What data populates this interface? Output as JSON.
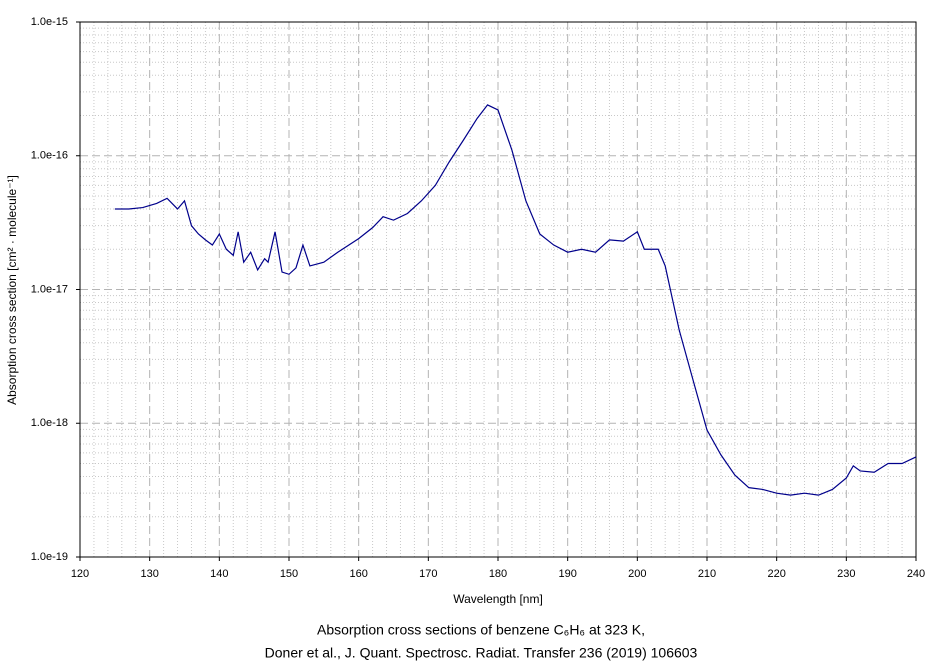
{
  "chart_data": {
    "type": "line",
    "log_y": true,
    "grid": true,
    "minor_grid": true,
    "x_label": "Wavelength [nm]",
    "y_label": "Absorption cross section [cm² · molecule⁻¹]",
    "caption": [
      "Absorption cross sections of benzene C₆H₆ at 323 K,",
      "Doner et al., J. Quant. Spectrosc. Radiat. Transfer 236 (2019) 106603"
    ],
    "xlim": [
      120,
      240
    ],
    "xticks": [
      120,
      130,
      140,
      150,
      160,
      170,
      180,
      190,
      200,
      210,
      220,
      230,
      240
    ],
    "ylim": [
      1e-19,
      1e-15
    ],
    "yticks": [
      {
        "value": 1e-19,
        "label": "1.0e-19"
      },
      {
        "value": 1e-18,
        "label": "1.0e-18"
      },
      {
        "value": 1e-17,
        "label": "1.0e-17"
      },
      {
        "value": 1e-16,
        "label": "1.0e-16"
      },
      {
        "value": 1e-15,
        "label": "1.0e-15"
      }
    ],
    "color": "#00008b",
    "x": [
      125,
      127,
      129,
      131,
      132.5,
      134,
      135,
      136,
      137,
      138,
      139,
      140,
      141,
      142,
      142.7,
      143.5,
      144.5,
      145.5,
      146.5,
      147,
      148,
      149,
      150,
      151,
      152,
      153,
      155,
      157,
      160,
      162,
      163.5,
      165,
      167,
      169,
      171,
      173,
      175,
      177,
      178.5,
      180,
      182,
      184,
      186,
      188,
      190,
      192,
      194,
      196,
      198,
      200,
      201,
      203,
      204,
      206,
      208,
      210,
      212,
      214,
      216,
      218,
      220,
      222,
      224,
      226,
      228,
      230,
      231,
      232,
      234,
      236,
      238,
      240
    ],
    "values": [
      4e-17,
      4e-17,
      4.1e-17,
      4.4e-17,
      4.8e-17,
      4e-17,
      4.6e-17,
      3e-17,
      2.6e-17,
      2.35e-17,
      2.15e-17,
      2.6e-17,
      2e-17,
      1.8e-17,
      2.7e-17,
      1.6e-17,
      1.9e-17,
      1.4e-17,
      1.7e-17,
      1.6e-17,
      2.7e-17,
      1.35e-17,
      1.3e-17,
      1.45e-17,
      2.15e-17,
      1.5e-17,
      1.6e-17,
      1.9e-17,
      2.4e-17,
      2.9e-17,
      3.5e-17,
      3.3e-17,
      3.7e-17,
      4.6e-17,
      6e-17,
      9e-17,
      1.3e-16,
      1.9e-16,
      2.4e-16,
      2.2e-16,
      1.1e-16,
      4.6e-17,
      2.6e-17,
      2.15e-17,
      1.9e-17,
      2e-17,
      1.9e-17,
      2.35e-17,
      2.3e-17,
      2.7e-17,
      2e-17,
      2e-17,
      1.5e-17,
      5e-18,
      2.1e-18,
      8.9e-19,
      5.8e-19,
      4.1e-19,
      3.3e-19,
      3.2e-19,
      3e-19,
      2.9e-19,
      3e-19,
      2.9e-19,
      3.2e-19,
      3.9e-19,
      4.8e-19,
      4.4e-19,
      4.3e-19,
      5e-19,
      5e-19,
      5.6e-19
    ]
  }
}
